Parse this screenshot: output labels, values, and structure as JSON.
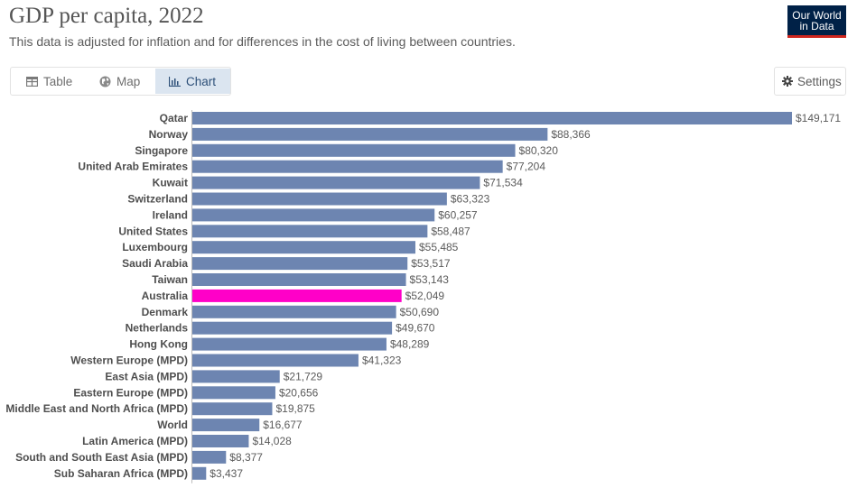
{
  "header": {
    "title": "GDP per capita, 2022",
    "subtitle": "This data is adjusted for inflation and for differences in the cost of living between countries.",
    "logo_line1": "Our World",
    "logo_line2": "in Data"
  },
  "tabs": [
    {
      "label": "Table",
      "icon": "table-icon",
      "active": false
    },
    {
      "label": "Map",
      "icon": "globe-icon",
      "active": false
    },
    {
      "label": "Chart",
      "icon": "bar-chart-icon",
      "active": true
    }
  ],
  "settings": {
    "label": "Settings",
    "icon": "gear-icon"
  },
  "colors": {
    "bar": "#6d85b1",
    "highlight": "#ff00c8",
    "logo_bg": "#002147",
    "logo_accent": "#ce261e",
    "active_tab_bg": "#dbe5f0"
  },
  "chart_data": {
    "type": "bar",
    "orientation": "horizontal",
    "title": "GDP per capita, 2022",
    "value_prefix": "$",
    "highlighted": "Australia",
    "categories": [
      "Qatar",
      "Norway",
      "Singapore",
      "United Arab Emirates",
      "Kuwait",
      "Switzerland",
      "Ireland",
      "United States",
      "Luxembourg",
      "Saudi Arabia",
      "Taiwan",
      "Australia",
      "Denmark",
      "Netherlands",
      "Hong Kong",
      "Western Europe (MPD)",
      "East Asia (MPD)",
      "Eastern Europe (MPD)",
      "Middle East and North Africa (MPD)",
      "World",
      "Latin America (MPD)",
      "South and South East Asia (MPD)",
      "Sub Saharan Africa (MPD)"
    ],
    "values": [
      149171,
      88366,
      80320,
      77204,
      71534,
      63323,
      60257,
      58487,
      55485,
      53517,
      53143,
      52049,
      50690,
      49670,
      48289,
      41323,
      21729,
      20656,
      19875,
      16677,
      14028,
      8377,
      3437
    ],
    "value_labels": [
      "$149,171",
      "$88,366",
      "$80,320",
      "$77,204",
      "$71,534",
      "$63,323",
      "$60,257",
      "$58,487",
      "$55,485",
      "$53,517",
      "$53,143",
      "$52,049",
      "$50,690",
      "$49,670",
      "$48,289",
      "$41,323",
      "$21,729",
      "$20,656",
      "$19,875",
      "$16,677",
      "$14,028",
      "$8,377",
      "$3,437"
    ],
    "xlim": [
      0,
      149171
    ]
  }
}
